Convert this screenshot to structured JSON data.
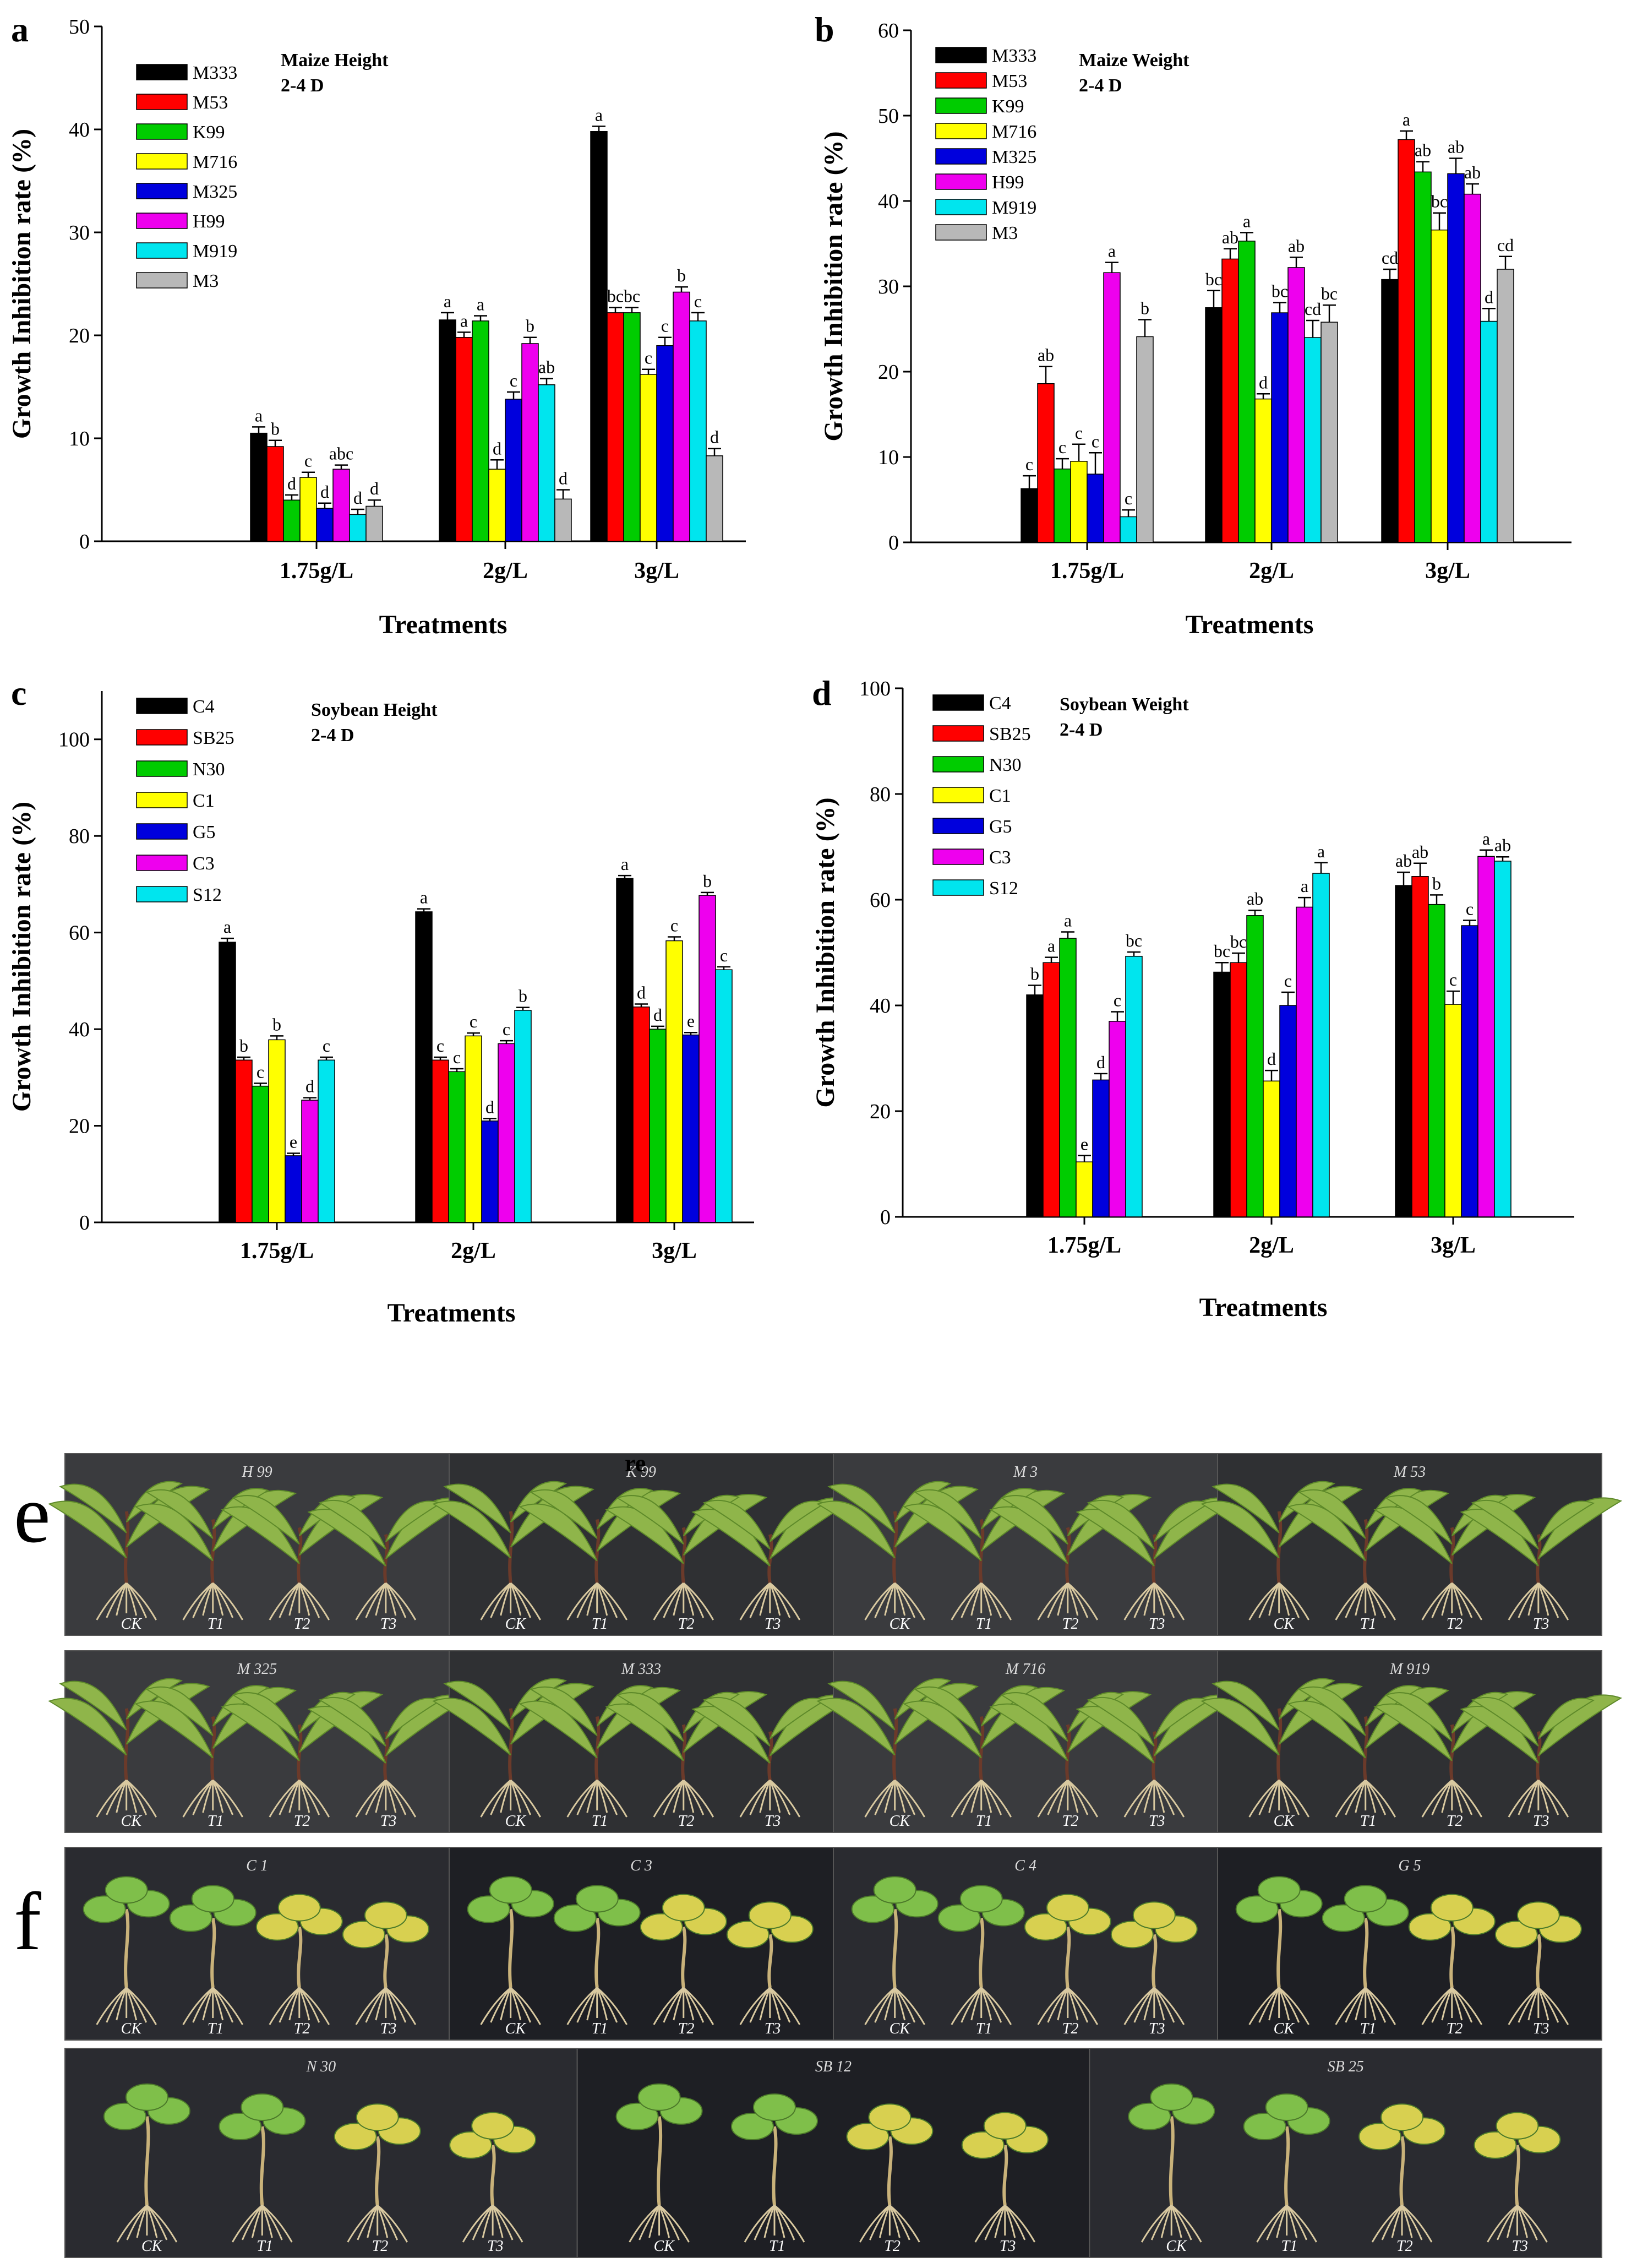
{
  "colors": {
    "C4": "#000000",
    "SB25": "#ff0000",
    "N30": "#00cc00",
    "C1": "#ffff00",
    "G5": "#0000dd",
    "C3": "#ee00ee",
    "S12": "#00e5ee",
    "M333": "#000000",
    "M53": "#ff0000",
    "K99": "#00cc00",
    "M716": "#ffff00",
    "M325": "#0000dd",
    "H99": "#ee00ee",
    "M919": "#00e5ee",
    "M3": "#b8b8b8"
  },
  "chart_data": [
    {
      "panel": "a",
      "type": "bar",
      "title": "Maize Height",
      "subtitle": "2-4 D",
      "xlabel": "Treatments",
      "ylabel": "Growth Inhibition rate (%)",
      "ylim": [
        0,
        50
      ],
      "yticks": [
        0,
        10,
        20,
        30,
        40,
        50
      ],
      "categories": [
        "1.75g/L",
        "2g/L",
        "3g/L"
      ],
      "series": [
        {
          "name": "M333",
          "values": [
            10.5,
            21.5,
            39.8
          ],
          "errors": [
            0.6,
            0.7,
            0.5
          ],
          "labels": [
            "a",
            "a",
            "a"
          ]
        },
        {
          "name": "M53",
          "values": [
            9.2,
            19.8,
            22.2
          ],
          "errors": [
            0.6,
            0.5,
            0.5
          ],
          "labels": [
            "b",
            "a",
            "bc"
          ]
        },
        {
          "name": "K99",
          "values": [
            4.0,
            21.4,
            22.2
          ],
          "errors": [
            0.5,
            0.5,
            0.5
          ],
          "labels": [
            "d",
            "a",
            "bc"
          ]
        },
        {
          "name": "M716",
          "values": [
            6.2,
            7.0,
            16.2
          ],
          "errors": [
            0.5,
            0.9,
            0.5
          ],
          "labels": [
            "c",
            "d",
            "c"
          ]
        },
        {
          "name": "M325",
          "values": [
            3.2,
            13.8,
            19.0
          ],
          "errors": [
            0.5,
            0.7,
            0.8
          ],
          "labels": [
            "d",
            "c",
            "c"
          ]
        },
        {
          "name": "H99",
          "values": [
            7.0,
            19.2,
            24.2
          ],
          "errors": [
            0.4,
            0.6,
            0.5
          ],
          "labels": [
            "abc",
            "b",
            "b"
          ]
        },
        {
          "name": "M919",
          "values": [
            2.6,
            15.2,
            21.4
          ],
          "errors": [
            0.5,
            0.6,
            0.8
          ],
          "labels": [
            "d",
            "ab",
            "c"
          ]
        },
        {
          "name": "M3",
          "values": [
            3.4,
            4.1,
            8.3
          ],
          "errors": [
            0.6,
            0.9,
            0.7
          ],
          "labels": [
            "d",
            "d",
            "d"
          ]
        }
      ]
    },
    {
      "panel": "b",
      "type": "bar",
      "title": "Maize Weight",
      "subtitle": "2-4 D",
      "xlabel": "Treatments",
      "ylabel": "Growth Inhibition rate (%)",
      "ylim": [
        0,
        60
      ],
      "yticks": [
        0,
        10,
        20,
        30,
        40,
        50,
        60
      ],
      "categories": [
        "1.75g/L",
        "2g/L",
        "3g/L"
      ],
      "series": [
        {
          "name": "M333",
          "values": [
            6.3,
            27.5,
            30.8
          ],
          "errors": [
            1.5,
            2.0,
            1.2
          ],
          "labels": [
            "c",
            "bc",
            "cd"
          ]
        },
        {
          "name": "M53",
          "values": [
            18.6,
            33.2,
            47.2
          ],
          "errors": [
            2.0,
            1.2,
            1.0
          ],
          "labels": [
            "ab",
            "ab",
            "a"
          ]
        },
        {
          "name": "K99",
          "values": [
            8.6,
            35.3,
            43.4
          ],
          "errors": [
            1.2,
            1.0,
            1.2
          ],
          "labels": [
            "c",
            "a",
            "ab"
          ]
        },
        {
          "name": "M716",
          "values": [
            9.5,
            16.8,
            36.6
          ],
          "errors": [
            2.0,
            0.6,
            2.0
          ],
          "labels": [
            "c",
            "d",
            "bc"
          ]
        },
        {
          "name": "M325",
          "values": [
            8.0,
            26.9,
            43.2
          ],
          "errors": [
            2.5,
            1.2,
            1.8
          ],
          "labels": [
            "c",
            "bc",
            "ab"
          ]
        },
        {
          "name": "H99",
          "values": [
            31.6,
            32.2,
            40.8
          ],
          "errors": [
            1.2,
            1.2,
            1.2
          ],
          "labels": [
            "a",
            "ab",
            "ab"
          ]
        },
        {
          "name": "M919",
          "values": [
            3.0,
            24.0,
            25.9
          ],
          "errors": [
            0.8,
            2.0,
            1.5
          ],
          "labels": [
            "c",
            "cd",
            "d"
          ]
        },
        {
          "name": "M3",
          "values": [
            24.1,
            25.8,
            32.0
          ],
          "errors": [
            2.0,
            2.0,
            1.5
          ],
          "labels": [
            "b",
            "bc",
            "cd"
          ]
        }
      ]
    },
    {
      "panel": "c",
      "type": "bar",
      "title": "Soybean Height",
      "subtitle": "2-4 D",
      "xlabel": "Treatments",
      "ylabel": "Growth Inhibition rate (%)",
      "ylim": [
        0,
        110
      ],
      "yticks": [
        0,
        20,
        40,
        60,
        80,
        100
      ],
      "categories": [
        "1.75g/L",
        "2g/L",
        "3g/L"
      ],
      "series": [
        {
          "name": "C4",
          "values": [
            58.0,
            64.3,
            71.2
          ],
          "errors": [
            0.8,
            0.6,
            0.6
          ],
          "labels": [
            "a",
            "a",
            "a"
          ]
        },
        {
          "name": "SB25",
          "values": [
            33.6,
            33.6,
            44.6
          ],
          "errors": [
            0.6,
            0.6,
            0.6
          ],
          "labels": [
            "b",
            "c",
            "d"
          ]
        },
        {
          "name": "N30",
          "values": [
            28.2,
            31.2,
            40.0
          ],
          "errors": [
            0.6,
            0.6,
            0.6
          ],
          "labels": [
            "c",
            "c",
            "d"
          ]
        },
        {
          "name": "C1",
          "values": [
            37.8,
            38.6,
            58.3
          ],
          "errors": [
            0.8,
            0.6,
            0.8
          ],
          "labels": [
            "b",
            "c",
            "c"
          ]
        },
        {
          "name": "G5",
          "values": [
            13.8,
            21.0,
            38.8
          ],
          "errors": [
            0.5,
            0.5,
            0.5
          ],
          "labels": [
            "e",
            "d",
            "e"
          ]
        },
        {
          "name": "C3",
          "values": [
            25.3,
            37.0,
            67.7
          ],
          "errors": [
            0.5,
            0.6,
            0.6
          ],
          "labels": [
            "d",
            "c",
            "b"
          ]
        },
        {
          "name": "S12",
          "values": [
            33.6,
            43.9,
            52.3
          ],
          "errors": [
            0.6,
            0.6,
            0.6
          ],
          "labels": [
            "c",
            "b",
            "c"
          ]
        }
      ]
    },
    {
      "panel": "d",
      "type": "bar",
      "title": "Soybean Weight",
      "subtitle": "2-4 D",
      "xlabel": "Treatments",
      "ylabel": "Growth Inhibition rate (%)",
      "ylim": [
        0,
        100
      ],
      "yticks": [
        0,
        20,
        40,
        60,
        80,
        100
      ],
      "categories": [
        "1.75g/L",
        "2g/L",
        "3g/L"
      ],
      "series": [
        {
          "name": "C4",
          "values": [
            42.0,
            46.3,
            62.7
          ],
          "errors": [
            1.8,
            1.8,
            2.5
          ],
          "labels": [
            "b",
            "bc",
            "ab"
          ]
        },
        {
          "name": "SB25",
          "values": [
            48.1,
            48.1,
            64.4
          ],
          "errors": [
            1.0,
            1.8,
            2.5
          ],
          "labels": [
            "a",
            "bc",
            "ab"
          ]
        },
        {
          "name": "N30",
          "values": [
            52.7,
            57.0,
            59.1
          ],
          "errors": [
            1.2,
            1.0,
            1.8
          ],
          "labels": [
            "a",
            "ab",
            "b"
          ]
        },
        {
          "name": "C1",
          "values": [
            10.4,
            25.7,
            40.2
          ],
          "errors": [
            1.2,
            2.0,
            2.5
          ],
          "labels": [
            "e",
            "d",
            "c"
          ]
        },
        {
          "name": "G5",
          "values": [
            25.9,
            40.0,
            55.1
          ],
          "errors": [
            1.2,
            2.5,
            1.0
          ],
          "labels": [
            "d",
            "c",
            "c"
          ]
        },
        {
          "name": "C3",
          "values": [
            37.0,
            58.6,
            68.2
          ],
          "errors": [
            1.8,
            1.8,
            1.2
          ],
          "labels": [
            "c",
            "a",
            "a"
          ]
        },
        {
          "name": "S12",
          "values": [
            49.3,
            65.0,
            67.3
          ],
          "errors": [
            0.8,
            2.0,
            0.8
          ],
          "labels": [
            "bc",
            "a",
            "ab"
          ]
        }
      ]
    }
  ],
  "photos": {
    "overlay_text": "re",
    "e": {
      "letter": "e",
      "rows": [
        [
          {
            "title": "H 99",
            "labels": [
              "CK",
              "T1",
              "T2",
              "T3"
            ]
          },
          {
            "title": "K 99",
            "labels": [
              "CK",
              "T1",
              "T2",
              "T3"
            ]
          },
          {
            "title": "M 3",
            "labels": [
              "CK",
              "T1",
              "T2",
              "T3"
            ]
          },
          {
            "title": "M 53",
            "labels": [
              "CK",
              "T1",
              "T2",
              "T3"
            ]
          }
        ],
        [
          {
            "title": "M 325",
            "labels": [
              "CK",
              "T1",
              "T2",
              "T3"
            ]
          },
          {
            "title": "M 333",
            "labels": [
              "CK",
              "T1",
              "T2",
              "T3"
            ]
          },
          {
            "title": "M 716",
            "labels": [
              "CK",
              "T1",
              "T2",
              "T3"
            ]
          },
          {
            "title": "M 919",
            "labels": [
              "CK",
              "T1",
              "T2",
              "T3"
            ]
          }
        ]
      ]
    },
    "f": {
      "letter": "f",
      "rows": [
        [
          {
            "title": "C 1",
            "labels": [
              "CK",
              "T1",
              "T2",
              "T3"
            ]
          },
          {
            "title": "C 3",
            "labels": [
              "CK",
              "T1",
              "T2",
              "T3"
            ]
          },
          {
            "title": "C 4",
            "labels": [
              "CK",
              "T1",
              "T2",
              "T3"
            ]
          },
          {
            "title": "G 5",
            "labels": [
              "CK",
              "T1",
              "T2",
              "T3"
            ]
          }
        ],
        [
          {
            "title": "N 30",
            "labels": [
              "CK",
              "T1",
              "T2",
              "T3"
            ]
          },
          {
            "title": "SB 12",
            "labels": [
              "CK",
              "T1",
              "T2",
              "T3"
            ]
          },
          {
            "title": "SB 25",
            "labels": [
              "CK",
              "T1",
              "T2",
              "T3"
            ]
          }
        ]
      ]
    }
  }
}
